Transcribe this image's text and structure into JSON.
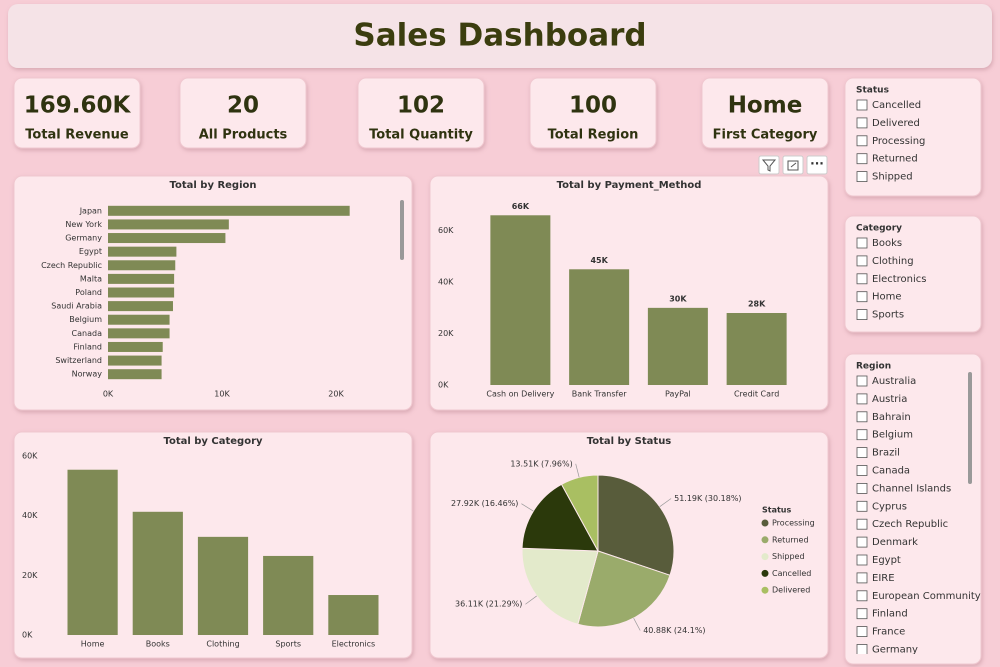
{
  "title": "Sales Dashboard",
  "kpis": [
    {
      "value": "169.60K",
      "label": "Total Revenue"
    },
    {
      "value": "20",
      "label": "All Products"
    },
    {
      "value": "102",
      "label": "Total Quantity"
    },
    {
      "value": "100",
      "label": "Total Region"
    },
    {
      "value": "Home",
      "label": "First Category"
    }
  ],
  "slicers": [
    {
      "title": "Status",
      "items": [
        "Cancelled",
        "Delivered",
        "Processing",
        "Returned",
        "Shipped"
      ]
    },
    {
      "title": "Category",
      "items": [
        "Books",
        "Clothing",
        "Electronics",
        "Home",
        "Sports"
      ]
    },
    {
      "title": "Region",
      "items": [
        "Australia",
        "Austria",
        "Bahrain",
        "Belgium",
        "Brazil",
        "Canada",
        "Channel Islands",
        "Cyprus",
        "Czech Republic",
        "Denmark",
        "Egypt",
        "EIRE",
        "European Community",
        "Finland",
        "France",
        "Germany"
      ]
    }
  ],
  "chart_data": [
    {
      "type": "hbar",
      "title": "Total by Region",
      "categories": [
        "Japan",
        "New York",
        "Germany",
        "Egypt",
        "Czech Republic",
        "Malta",
        "Poland",
        "Saudi Arabia",
        "Belgium",
        "Canada",
        "Finland",
        "Switzerland",
        "Norway"
      ],
      "values": [
        21200,
        10600,
        10300,
        6000,
        5900,
        5800,
        5800,
        5700,
        5400,
        5400,
        4800,
        4700,
        4700
      ],
      "color": "#7f8a55",
      "xlim": [
        0,
        25000
      ],
      "xticks": [
        {
          "value": 0,
          "label": "0K"
        },
        {
          "value": 10000,
          "label": "10K"
        },
        {
          "value": 20000,
          "label": "20K"
        }
      ],
      "grid": false
    },
    {
      "type": "bar",
      "title": "Total by Payment_Method",
      "categories": [
        "Cash on Delivery",
        "Bank Transfer",
        "PayPal",
        "Credit Card"
      ],
      "values": [
        66000,
        45000,
        30000,
        28000
      ],
      "value_labels": [
        "66K",
        "45K",
        "30K",
        "28K"
      ],
      "color": "#7f8a55",
      "ylim": [
        0,
        70000
      ],
      "yticks": [
        {
          "value": 0,
          "label": "0K"
        },
        {
          "value": 20000,
          "label": "20K"
        },
        {
          "value": 40000,
          "label": "40K"
        },
        {
          "value": 60000,
          "label": "60K"
        }
      ],
      "grid": false
    },
    {
      "type": "bar",
      "title": "Total by Category",
      "categories": [
        "Home",
        "Books",
        "Clothing",
        "Sports",
        "Electronics"
      ],
      "values": [
        55400,
        41300,
        32900,
        26500,
        13400
      ],
      "color": "#7f8a55",
      "ylim": [
        0,
        60000
      ],
      "yticks": [
        {
          "value": 0,
          "label": "0K"
        },
        {
          "value": 20000,
          "label": "20K"
        },
        {
          "value": 40000,
          "label": "40K"
        },
        {
          "value": 60000,
          "label": "60K"
        }
      ],
      "grid": false
    },
    {
      "type": "pie",
      "title": "Total by Status",
      "legend_title": "Status",
      "legend": "right",
      "categories": [
        "Processing",
        "Returned",
        "Shipped",
        "Cancelled",
        "Delivered"
      ],
      "values": [
        51190,
        40880,
        36110,
        27920,
        13510
      ],
      "value_labels": [
        "51.19K (30.18%)",
        "40.88K (24.1%)",
        "36.11K (21.29%)",
        "27.92K (16.46%)",
        "13.51K (7.96%)"
      ],
      "colors": [
        "#585c3b",
        "#9aab6b",
        "#e3eacb",
        "#2b390b",
        "#a9bf62"
      ]
    }
  ]
}
